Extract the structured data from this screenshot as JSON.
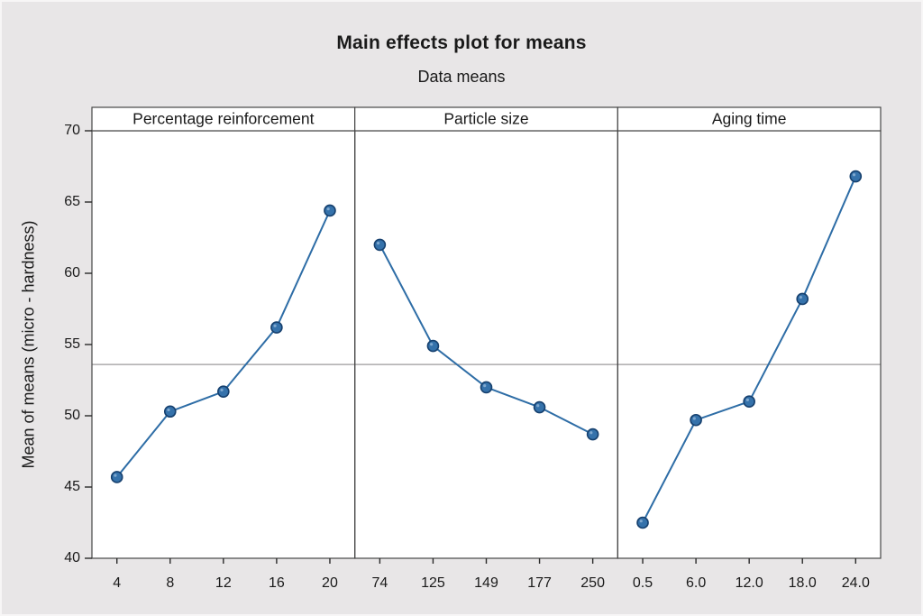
{
  "chart_data": {
    "type": "line",
    "title": "Main effects plot for means",
    "subtitle": "Data means",
    "ylabel": "Mean of means (micro - hardness)",
    "ylim": [
      40,
      70
    ],
    "yticks": [
      40,
      45,
      50,
      55,
      60,
      65,
      70
    ],
    "reference_line": 53.6,
    "grid": false,
    "legend": "none",
    "panels": [
      {
        "label": "Percentage reinforcement",
        "categories": [
          "4",
          "8",
          "12",
          "16",
          "20"
        ],
        "values": [
          45.7,
          50.3,
          51.7,
          56.2,
          64.4
        ]
      },
      {
        "label": "Particle size",
        "categories": [
          "74",
          "125",
          "149",
          "177",
          "250"
        ],
        "values": [
          62.0,
          54.9,
          52.0,
          50.6,
          48.7
        ]
      },
      {
        "label": "Aging time",
        "categories": [
          "0.5",
          "6.0",
          "12.0",
          "18.0",
          "24.0"
        ],
        "values": [
          42.5,
          49.7,
          51.0,
          58.2,
          66.8
        ]
      }
    ],
    "colors": {
      "line": "#2e6da6",
      "marker_fill": "#3572ab",
      "marker_edge": "#16406e",
      "reference": "#9c9a9b",
      "panel_border": "#464646",
      "tick": "#2a2a2a",
      "background": "#e8e6e7",
      "plot_bg": "#ffffff"
    }
  }
}
